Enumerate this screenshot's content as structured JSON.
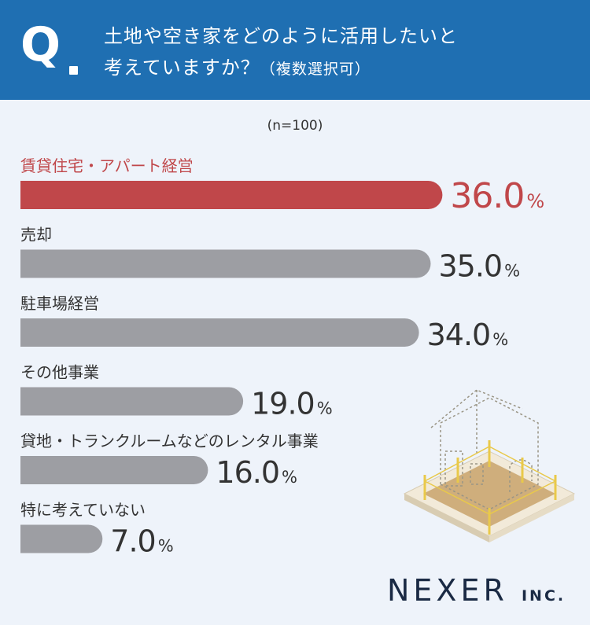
{
  "header": {
    "q": "Q",
    "question_line1": "土地や空き家をどのように活用したいと",
    "question_line2": "考えていますか？",
    "question_note": "（複数選択可）"
  },
  "sample_size": "(n=100)",
  "logo": {
    "name": "NEXER",
    "suffix": "INC."
  },
  "colors": {
    "header": "#1f6fb2",
    "highlight": "#c0474a",
    "bar": "#9d9ea3",
    "text": "#333333"
  },
  "chart_data": {
    "type": "bar",
    "orientation": "horizontal",
    "categories": [
      "賃貸住宅・アパート経営",
      "売却",
      "駐車場経営",
      "その他事業",
      "貸地・トランクルームなどのレンタル事業",
      "特に考えていない"
    ],
    "values": [
      36.0,
      35.0,
      34.0,
      19.0,
      16.0,
      7.0
    ],
    "value_labels": [
      "36.0",
      "35.0",
      "34.0",
      "19.0",
      "16.0",
      "7.0"
    ],
    "unit": "%",
    "highlight_index": 0,
    "xlim": [
      0,
      40
    ]
  }
}
